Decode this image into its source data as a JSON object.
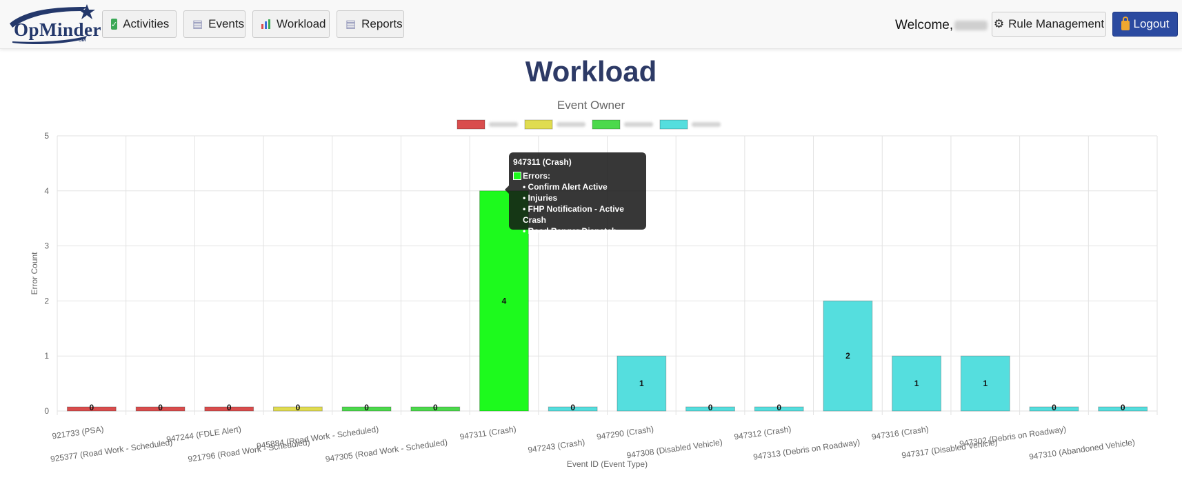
{
  "nav": {
    "logo_text": "OpMinder",
    "logo_sm": "SM",
    "activities": "Activities",
    "events": "Events",
    "workload": "Workload",
    "reports": "Reports",
    "welcome": "Welcome,",
    "rule_management": "Rule Management",
    "logout": "Logout"
  },
  "page": {
    "title": "Workload"
  },
  "colors": {
    "red": "#d94d4d",
    "yellow": "#e0dc50",
    "green": "#4cd94c",
    "highlight_green": "#1dfa1d",
    "cyan": "#55dede"
  },
  "chart_data": {
    "type": "bar",
    "title": "Event Owner",
    "xlabel": "Event ID (Event Type)",
    "ylabel": "Error Count",
    "ylim": [
      0,
      5
    ],
    "yticks": [
      0,
      1,
      2,
      3,
      4,
      5
    ],
    "grid": true,
    "legend_placement": "top",
    "legend": [
      {
        "color": "#d94d4d"
      },
      {
        "color": "#e0dc50"
      },
      {
        "color": "#4cd94c"
      },
      {
        "color": "#55dede"
      }
    ],
    "categories": [
      "921733 (PSA)",
      "925377 (Road Work - Scheduled)",
      "947244 (FDLE Alert)",
      "921796 (Road Work - Scheduled)",
      "945884 (Road Work - Scheduled)",
      "947305 (Road Work - Scheduled)",
      "947311 (Crash)",
      "947243 (Crash)",
      "947290 (Crash)",
      "947308 (Disabled Vehicle)",
      "947312 (Crash)",
      "947313 (Debris on Roadway)",
      "947316 (Crash)",
      "947317 (Disabled Vehicle)",
      "947302 (Debris on Roadway)",
      "947310 (Abandoned Vehicle)"
    ],
    "values": [
      0,
      0,
      0,
      0,
      0,
      0,
      4,
      0,
      1,
      0,
      0,
      2,
      1,
      1,
      0,
      0
    ],
    "bar_owner_index": [
      0,
      0,
      0,
      1,
      2,
      2,
      2,
      3,
      3,
      3,
      3,
      3,
      3,
      3,
      3,
      3
    ],
    "data_labels": [
      "0",
      "0",
      "0",
      "0",
      "0",
      "0",
      "4",
      "0",
      "1",
      "0",
      "0",
      "2",
      "1",
      "1",
      "0",
      "0"
    ],
    "highlighted_index": 6
  },
  "tooltip": {
    "title": "947311 (Crash)",
    "label": "Errors:",
    "items": [
      "• Confirm Alert Active",
      "• Injuries",
      "• FHP Notification - Active Crash",
      "• Road Ranger Dispatch"
    ]
  }
}
